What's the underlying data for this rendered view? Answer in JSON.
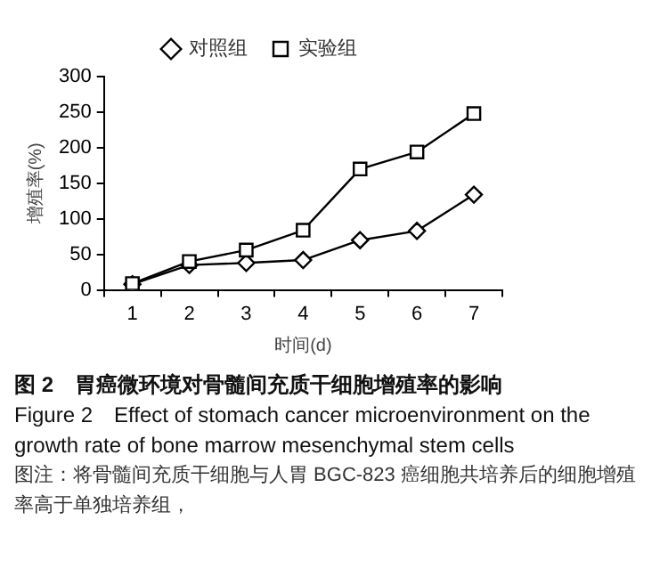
{
  "chart_data": {
    "type": "line",
    "title": "图 2　胃癌微环境对骨髓间充质干细胞增殖率的影响",
    "subtitle": "Figure 2　Effect of stomach cancer microenvironment on the growth rate of bone marrow mesenchymal stem cells",
    "annotations": [
      "图注：将骨髓间充质干细胞与人胃 BGC-823 癌细胞共培养后的细胞增殖率高于单独培养组，"
    ],
    "xlabel": "时间(d)",
    "ylabel": "增殖率(%)",
    "categories": [
      "1",
      "2",
      "3",
      "4",
      "5",
      "6",
      "7"
    ],
    "series": [
      {
        "name": "对照组",
        "color": "#000000",
        "marker": "diamond",
        "values": [
          8,
          35,
          38,
          42,
          70,
          83,
          134
        ]
      },
      {
        "name": "实验组",
        "color": "#000000",
        "marker": "square",
        "values": [
          9,
          40,
          56,
          84,
          170,
          194,
          248
        ]
      }
    ],
    "ylim": [
      0,
      300
    ],
    "yticks": [
      0,
      50,
      100,
      150,
      200,
      250,
      300
    ],
    "grid": false,
    "legend": "top",
    "line_style": "solid"
  }
}
